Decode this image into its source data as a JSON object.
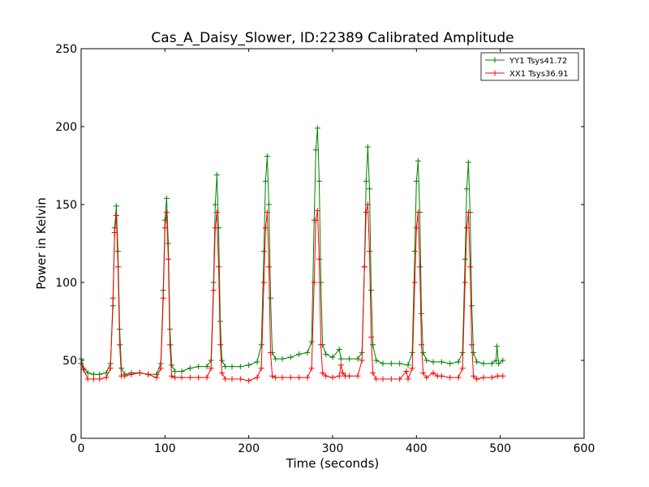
{
  "chart_data": {
    "type": "line",
    "title": "Cas_A_Daisy_Slower, ID:22389 Calibrated Amplitude",
    "xlabel": "Time (seconds)",
    "ylabel": "Power in Kelvin",
    "xlim": [
      0,
      600
    ],
    "ylim": [
      0,
      250
    ],
    "xticks": [
      "0",
      "100",
      "200",
      "300",
      "400",
      "500",
      "600"
    ],
    "yticks": [
      "0",
      "50",
      "100",
      "150",
      "200",
      "250"
    ],
    "grid": false,
    "legend_position": "top-right",
    "marker": "+",
    "series": [
      {
        "name": "YY1 Tsys41.72",
        "color": "#008000",
        "x": [
          0,
          3,
          8,
          15,
          22,
          30,
          35,
          38,
          40,
          42,
          44,
          46,
          48,
          52,
          60,
          70,
          80,
          90,
          95,
          98,
          100,
          102,
          104,
          106,
          108,
          112,
          120,
          130,
          140,
          150,
          155,
          158,
          160,
          162,
          164,
          166,
          168,
          172,
          180,
          190,
          200,
          210,
          215,
          218,
          220,
          222,
          224,
          226,
          228,
          232,
          240,
          250,
          260,
          270,
          275,
          278,
          280,
          282,
          284,
          286,
          288,
          292,
          300,
          308,
          310,
          320,
          330,
          335,
          338,
          340,
          342,
          344,
          346,
          348,
          352,
          360,
          370,
          380,
          390,
          395,
          398,
          400,
          402,
          404,
          406,
          408,
          412,
          420,
          430,
          440,
          450,
          455,
          458,
          460,
          462,
          464,
          466,
          468,
          472,
          480,
          490,
          495,
          496,
          498,
          503
        ],
        "values": [
          51,
          45,
          42,
          41,
          41,
          42,
          48,
          85,
          135,
          149,
          120,
          70,
          45,
          41,
          42,
          42,
          41,
          41,
          48,
          95,
          140,
          154,
          125,
          70,
          47,
          43,
          43,
          45,
          46,
          46,
          50,
          100,
          150,
          169,
          135,
          75,
          50,
          46,
          46,
          46,
          47,
          49,
          60,
          120,
          165,
          181,
          150,
          90,
          55,
          51,
          51,
          52,
          54,
          55,
          62,
          140,
          185,
          199,
          165,
          100,
          60,
          54,
          52,
          57,
          51,
          51,
          51,
          55,
          110,
          165,
          187,
          160,
          95,
          60,
          50,
          48,
          48,
          48,
          47,
          55,
          120,
          165,
          178,
          145,
          80,
          55,
          50,
          49,
          49,
          48,
          49,
          55,
          115,
          160,
          177,
          145,
          85,
          55,
          49,
          48,
          48,
          50,
          59,
          48,
          50
        ]
      },
      {
        "name": "XX1 Tsys36.91",
        "color": "#ff0000",
        "x": [
          0,
          3,
          8,
          15,
          22,
          30,
          35,
          38,
          40,
          42,
          44,
          46,
          48,
          52,
          60,
          70,
          80,
          90,
          95,
          98,
          100,
          102,
          104,
          106,
          108,
          112,
          120,
          130,
          140,
          150,
          155,
          158,
          160,
          162,
          164,
          166,
          168,
          172,
          180,
          190,
          200,
          210,
          215,
          218,
          220,
          222,
          224,
          226,
          228,
          232,
          240,
          250,
          260,
          270,
          275,
          278,
          280,
          282,
          284,
          286,
          288,
          292,
          300,
          308,
          310,
          312,
          315,
          320,
          330,
          335,
          338,
          340,
          342,
          344,
          346,
          348,
          352,
          360,
          370,
          380,
          388,
          390,
          395,
          398,
          400,
          402,
          404,
          406,
          408,
          412,
          420,
          425,
          430,
          440,
          450,
          455,
          458,
          460,
          462,
          464,
          466,
          468,
          472,
          480,
          490,
          497,
          503
        ],
        "values": [
          48,
          44,
          38,
          38,
          38,
          39,
          45,
          90,
          132,
          143,
          110,
          60,
          40,
          40,
          41,
          42,
          41,
          39,
          45,
          90,
          135,
          145,
          115,
          60,
          40,
          39,
          39,
          39,
          39,
          39,
          45,
          95,
          135,
          145,
          110,
          60,
          42,
          38,
          38,
          38,
          37,
          39,
          45,
          100,
          135,
          145,
          110,
          55,
          40,
          39,
          39,
          39,
          39,
          39,
          45,
          100,
          140,
          146,
          115,
          60,
          42,
          40,
          39,
          40,
          47,
          42,
          40,
          40,
          40,
          50,
          110,
          145,
          150,
          120,
          65,
          42,
          38,
          38,
          38,
          38,
          43,
          38,
          45,
          100,
          135,
          145,
          110,
          60,
          42,
          39,
          42,
          40,
          40,
          39,
          39,
          45,
          100,
          135,
          145,
          110,
          60,
          40,
          38,
          39,
          39,
          40,
          40
        ]
      }
    ]
  }
}
